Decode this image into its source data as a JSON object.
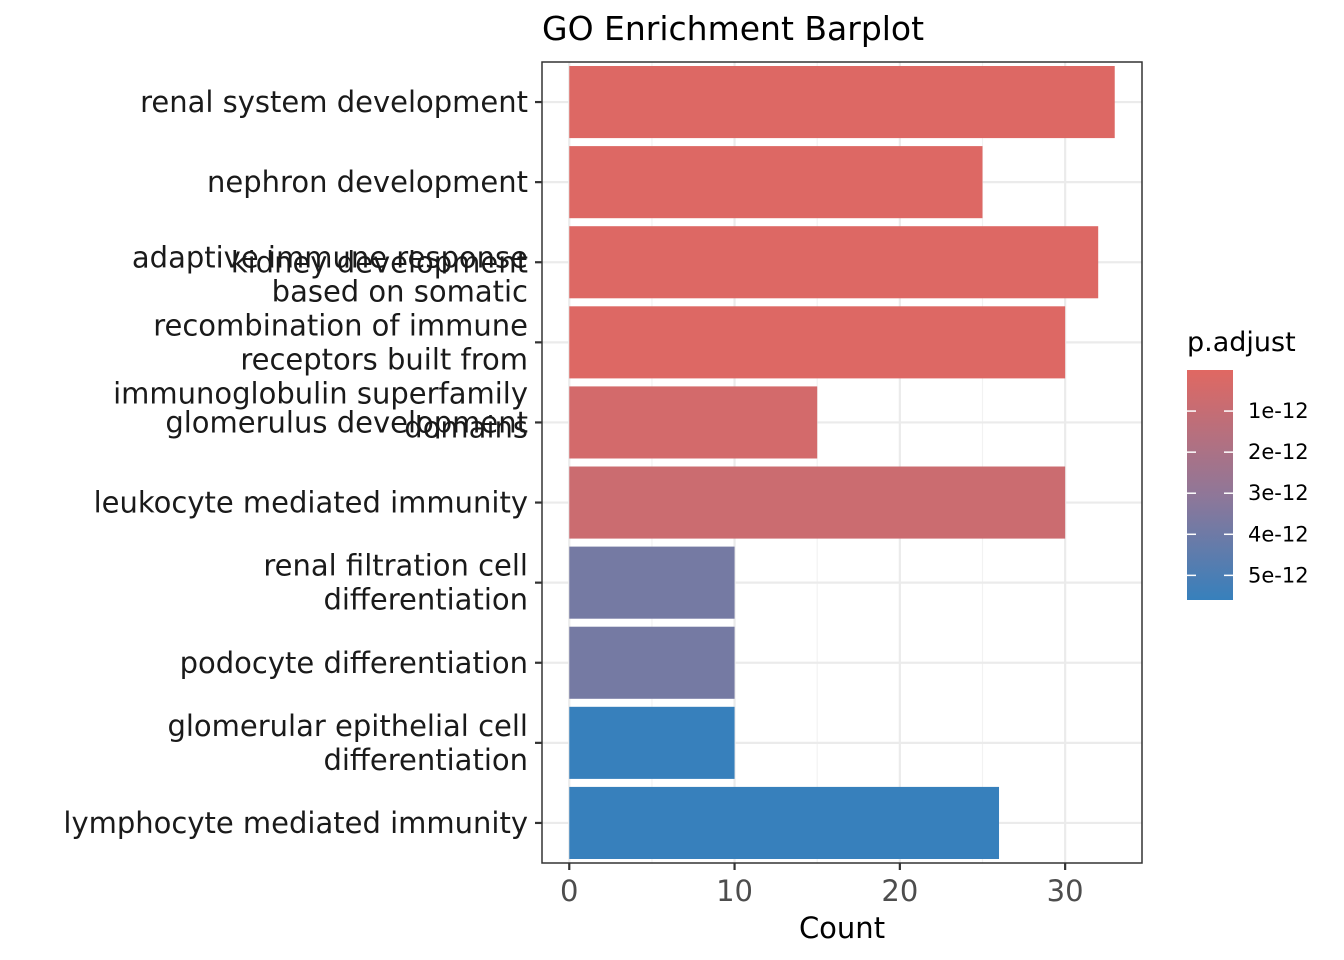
{
  "chart_data": {
    "type": "bar",
    "orientation": "horizontal",
    "title": "GO Enrichment Barplot",
    "xlabel": "Count",
    "ylabel": "",
    "xlim": [
      -1.65,
      34.65
    ],
    "x_ticks": [
      0,
      10,
      20,
      30
    ],
    "grid": true,
    "categories": [
      [
        "renal system development"
      ],
      [
        "nephron development"
      ],
      [
        "kidney development"
      ],
      [
        "adaptive immune response",
        "based on somatic",
        "recombination of immune",
        "receptors built from",
        "immunoglobulin superfamily",
        "domains"
      ],
      [
        "glomerulus development"
      ],
      [
        "leukocyte mediated immunity"
      ],
      [
        "renal filtration cell",
        "differentiation"
      ],
      [
        "podocyte differentiation"
      ],
      [
        "glomerular epithelial cell",
        "differentiation"
      ],
      [
        "lymphocyte mediated immunity"
      ]
    ],
    "values": [
      33,
      25,
      32,
      30,
      15,
      30,
      10,
      10,
      10,
      26
    ],
    "p_adjust": [
      1e-13,
      1e-13,
      1e-13,
      1e-13,
      5e-13,
      8e-13,
      3.8e-12,
      3.8e-12,
      5.9e-12,
      6e-12
    ],
    "legend": {
      "title": "p.adjust",
      "placement": "right",
      "ticks": [
        {
          "label": "1e-12",
          "value": 1e-12
        },
        {
          "label": "2e-12",
          "value": 2e-12
        },
        {
          "label": "3e-12",
          "value": 3e-12
        },
        {
          "label": "4e-12",
          "value": 4e-12
        },
        {
          "label": "5e-12",
          "value": 5e-12
        }
      ],
      "range": [
        0,
        5.6e-12
      ],
      "color_low": "#E06862",
      "color_mid": "#8E7799",
      "color_high": "#3780BC"
    }
  }
}
